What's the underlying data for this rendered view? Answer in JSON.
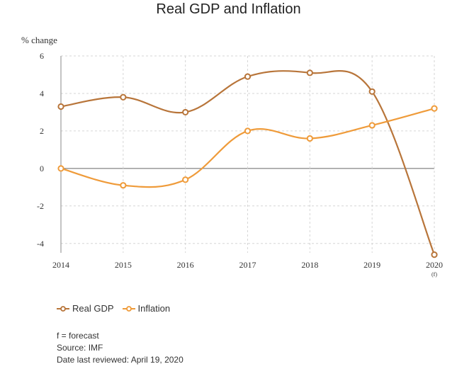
{
  "chart_data": {
    "type": "line",
    "title": "Real GDP and Inflation",
    "ylabel": "% change",
    "xlabel": "",
    "categories": [
      "2014",
      "2015",
      "2016",
      "2017",
      "2018",
      "2019",
      "2020"
    ],
    "category_notes": [
      "",
      "",
      "",
      "",
      "",
      "",
      "(f)"
    ],
    "ylim": [
      -4.5,
      6
    ],
    "yticks": [
      6,
      4,
      2,
      0,
      -2,
      -4
    ],
    "ytick_labels": [
      "6",
      "4",
      "2",
      "0",
      "-2",
      "-4"
    ],
    "grid": true,
    "legend_position": "bottom-left",
    "series": [
      {
        "name": "Real GDP",
        "color": "#b8753a",
        "values": [
          3.3,
          3.8,
          3.0,
          4.9,
          5.1,
          4.1,
          -4.6
        ]
      },
      {
        "name": "Inflation",
        "color": "#ef9b3a",
        "values": [
          0.0,
          -0.9,
          -0.6,
          2.0,
          1.6,
          2.3,
          3.2
        ]
      }
    ]
  },
  "notes": {
    "forecast": "f = forecast",
    "source": "Source: IMF",
    "reviewed": "Date last reviewed: April 19, 2020"
  }
}
